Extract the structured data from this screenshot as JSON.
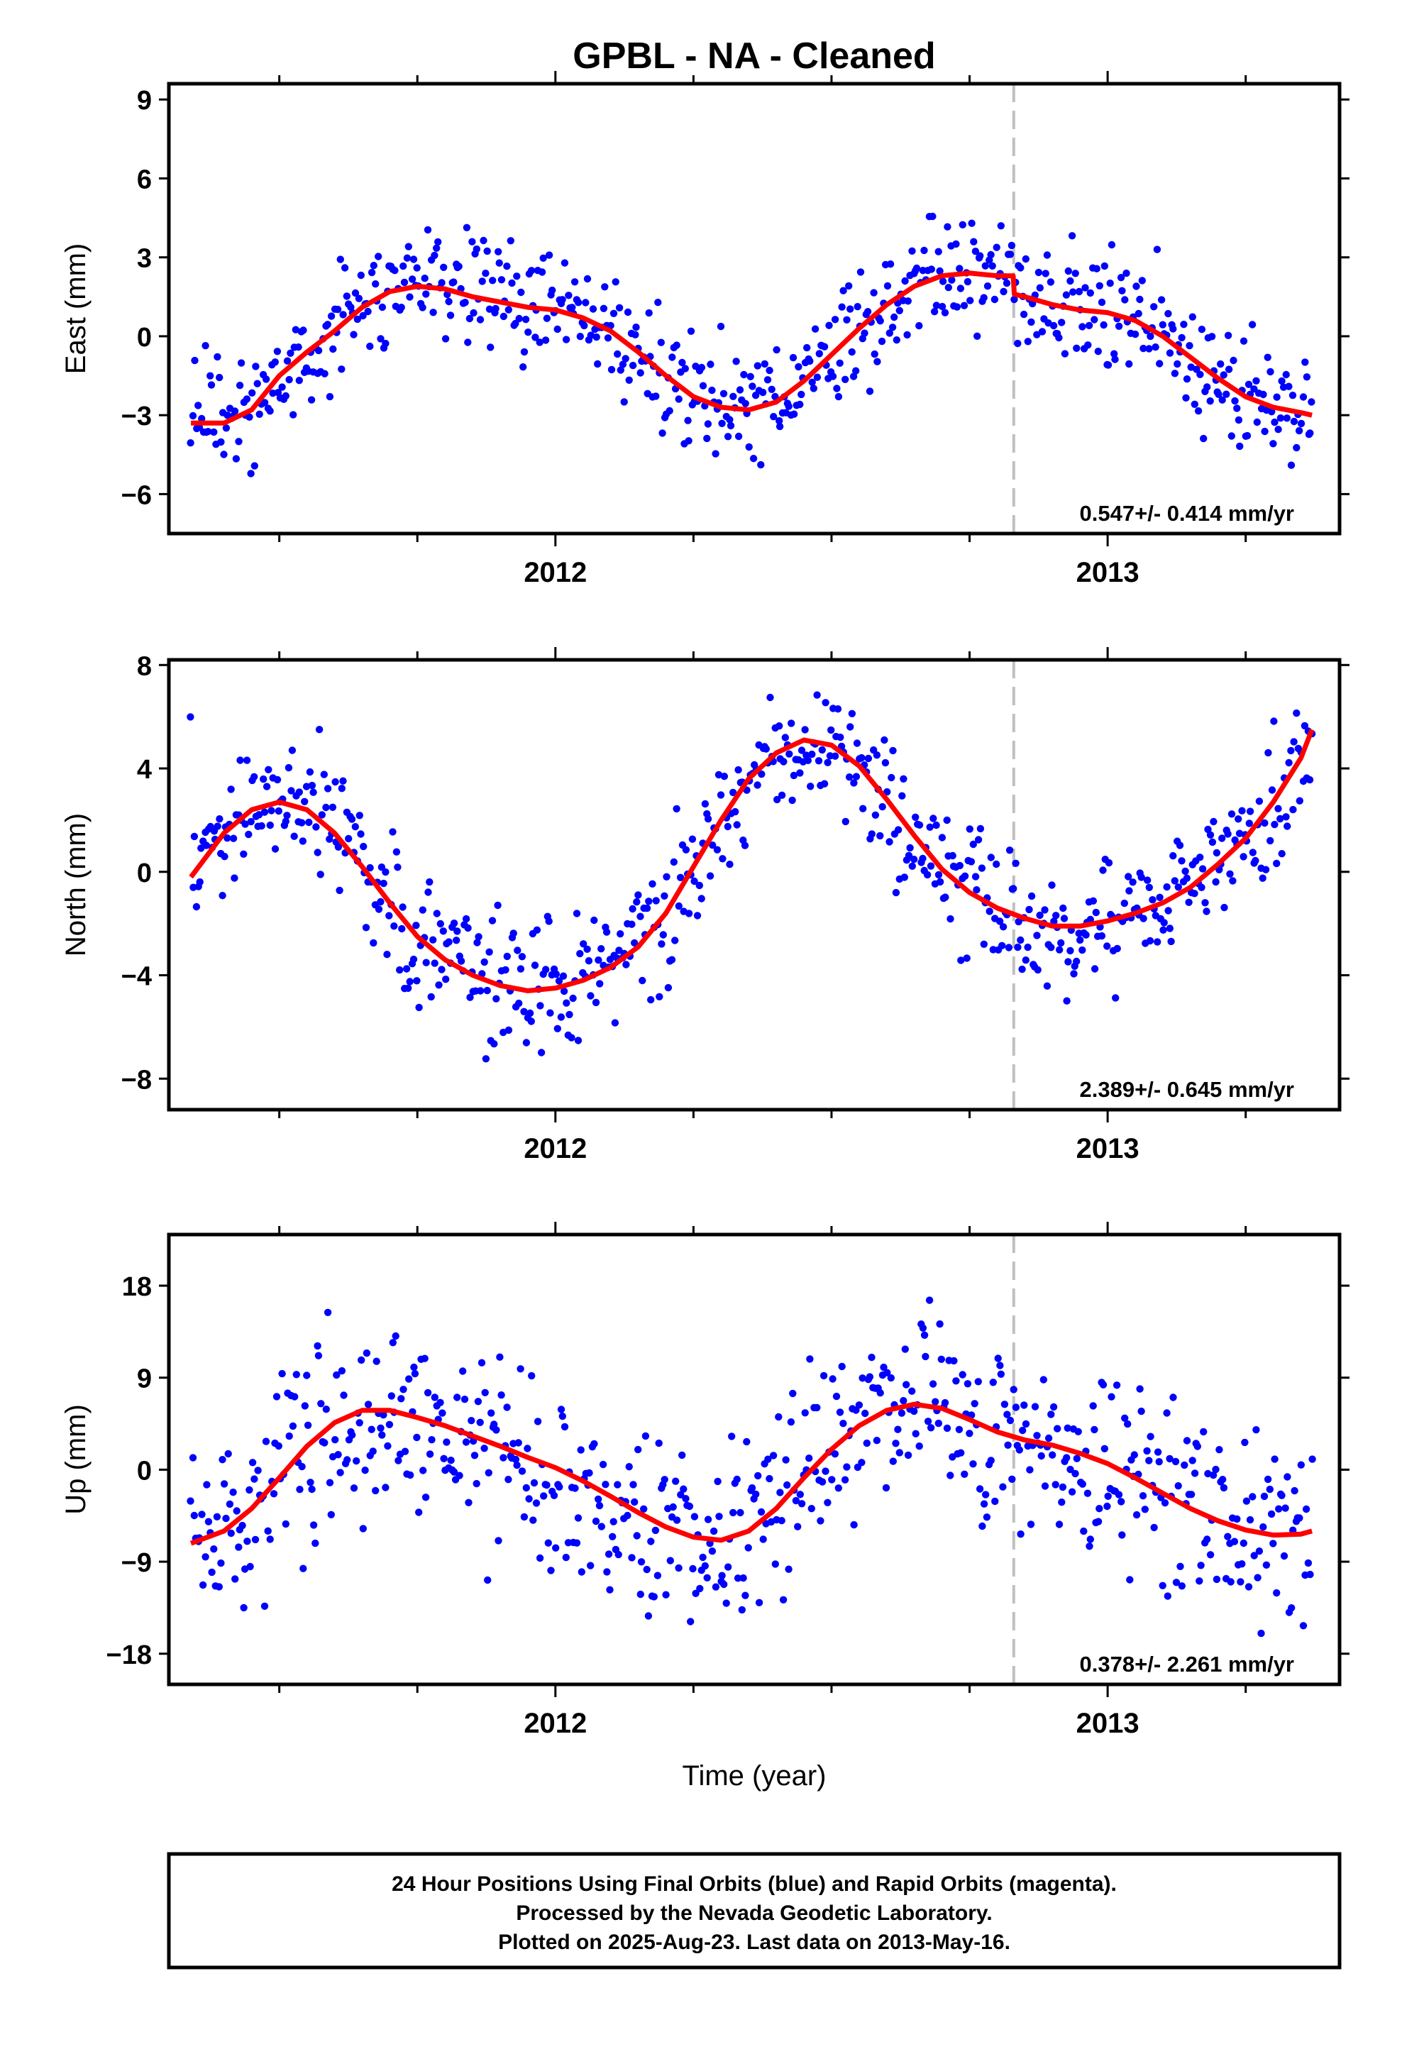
{
  "title": "GPBL  - NA - Cleaned",
  "xaxis_label": "Time (year)",
  "footer": {
    "line1": "24 Hour Positions Using Final Orbits (blue) and Rapid Orbits (magenta).",
    "line2": "Processed by the Nevada Geodetic Laboratory.",
    "line3": "Plotted on 2025-Aug-23. Last data on 2013-May-16."
  },
  "colors": {
    "points": "#0000ff",
    "fit": "#ff0000",
    "break_line": "#c0c0c0",
    "frame": "#000000"
  },
  "chart_data": [
    {
      "type": "scatter",
      "ylabel": "East (mm)",
      "rate_label": "0.547+/- 0.414 mm/yr",
      "xlim": [
        2011.3,
        2013.42
      ],
      "ylim": [
        -7.5,
        9.6
      ],
      "yticks": [
        -6,
        -3,
        0,
        3,
        6,
        9
      ],
      "xticks_major": [
        2012,
        2013
      ],
      "xtick_labels": [
        "2012",
        "2013"
      ],
      "break_year": 2012.83,
      "fit_series": [
        [
          2011.34,
          -3.3
        ],
        [
          2011.4,
          -3.3
        ],
        [
          2011.45,
          -2.8
        ],
        [
          2011.5,
          -1.5
        ],
        [
          2011.55,
          -0.6
        ],
        [
          2011.6,
          0.2
        ],
        [
          2011.65,
          1.1
        ],
        [
          2011.7,
          1.7
        ],
        [
          2011.75,
          1.9
        ],
        [
          2011.8,
          1.8
        ],
        [
          2011.85,
          1.5
        ],
        [
          2011.9,
          1.3
        ],
        [
          2011.95,
          1.1
        ],
        [
          2012.0,
          1.0
        ],
        [
          2012.05,
          0.7
        ],
        [
          2012.1,
          0.2
        ],
        [
          2012.15,
          -0.6
        ],
        [
          2012.2,
          -1.5
        ],
        [
          2012.25,
          -2.3
        ],
        [
          2012.3,
          -2.7
        ],
        [
          2012.35,
          -2.8
        ],
        [
          2012.4,
          -2.5
        ],
        [
          2012.45,
          -1.7
        ],
        [
          2012.5,
          -0.7
        ],
        [
          2012.55,
          0.3
        ],
        [
          2012.6,
          1.2
        ],
        [
          2012.65,
          1.9
        ],
        [
          2012.7,
          2.3
        ],
        [
          2012.75,
          2.4
        ],
        [
          2012.8,
          2.3
        ],
        [
          2012.829,
          2.3
        ],
        [
          2012.831,
          1.6
        ],
        [
          2012.85,
          1.5
        ],
        [
          2012.9,
          1.2
        ],
        [
          2012.95,
          1.0
        ],
        [
          2013.0,
          0.9
        ],
        [
          2013.05,
          0.6
        ],
        [
          2013.1,
          0.0
        ],
        [
          2013.15,
          -0.8
        ],
        [
          2013.2,
          -1.6
        ],
        [
          2013.25,
          -2.3
        ],
        [
          2013.3,
          -2.7
        ],
        [
          2013.35,
          -2.9
        ],
        [
          2013.37,
          -3.0
        ]
      ]
    },
    {
      "type": "scatter",
      "ylabel": "North (mm)",
      "rate_label": "2.389+/- 0.645 mm/yr",
      "xlim": [
        2011.3,
        2013.42
      ],
      "ylim": [
        -9.2,
        8.2
      ],
      "yticks": [
        -8,
        -4,
        0,
        4,
        8
      ],
      "xticks_major": [
        2012,
        2013
      ],
      "xtick_labels": [
        "2012",
        "2013"
      ],
      "break_year": 2012.83,
      "fit_series": [
        [
          2011.34,
          -0.2
        ],
        [
          2011.4,
          1.5
        ],
        [
          2011.45,
          2.4
        ],
        [
          2011.5,
          2.7
        ],
        [
          2011.55,
          2.4
        ],
        [
          2011.6,
          1.5
        ],
        [
          2011.65,
          0.2
        ],
        [
          2011.7,
          -1.2
        ],
        [
          2011.75,
          -2.5
        ],
        [
          2011.8,
          -3.4
        ],
        [
          2011.85,
          -4.0
        ],
        [
          2011.9,
          -4.4
        ],
        [
          2011.95,
          -4.6
        ],
        [
          2012.0,
          -4.5
        ],
        [
          2012.05,
          -4.2
        ],
        [
          2012.1,
          -3.7
        ],
        [
          2012.15,
          -2.9
        ],
        [
          2012.2,
          -1.6
        ],
        [
          2012.25,
          0.2
        ],
        [
          2012.3,
          2.0
        ],
        [
          2012.35,
          3.6
        ],
        [
          2012.4,
          4.6
        ],
        [
          2012.45,
          5.1
        ],
        [
          2012.5,
          4.9
        ],
        [
          2012.55,
          4.1
        ],
        [
          2012.6,
          2.8
        ],
        [
          2012.65,
          1.4
        ],
        [
          2012.7,
          0.1
        ],
        [
          2012.75,
          -0.8
        ],
        [
          2012.8,
          -1.4
        ],
        [
          2012.85,
          -1.8
        ],
        [
          2012.9,
          -2.1
        ],
        [
          2012.95,
          -2.1
        ],
        [
          2013.0,
          -1.9
        ],
        [
          2013.05,
          -1.6
        ],
        [
          2013.1,
          -1.2
        ],
        [
          2013.15,
          -0.6
        ],
        [
          2013.2,
          0.3
        ],
        [
          2013.25,
          1.3
        ],
        [
          2013.3,
          2.7
        ],
        [
          2013.35,
          4.4
        ],
        [
          2013.37,
          5.5
        ]
      ]
    },
    {
      "type": "scatter",
      "ylabel": "Up (mm)",
      "rate_label": "0.378+/- 2.261 mm/yr",
      "xlim": [
        2011.3,
        2013.42
      ],
      "ylim": [
        -21,
        23
      ],
      "yticks": [
        -18,
        -9,
        0,
        9,
        18
      ],
      "xtick_labels": [
        "2012",
        "2013"
      ],
      "xticks_major": [
        2012,
        2013
      ],
      "break_year": 2012.83,
      "fit_series": [
        [
          2011.34,
          -7.2
        ],
        [
          2011.4,
          -6.0
        ],
        [
          2011.45,
          -3.8
        ],
        [
          2011.5,
          -0.8
        ],
        [
          2011.55,
          2.3
        ],
        [
          2011.6,
          4.6
        ],
        [
          2011.65,
          5.8
        ],
        [
          2011.7,
          5.8
        ],
        [
          2011.75,
          5.1
        ],
        [
          2011.8,
          4.3
        ],
        [
          2011.85,
          3.3
        ],
        [
          2011.9,
          2.3
        ],
        [
          2011.95,
          1.2
        ],
        [
          2012.0,
          0.2
        ],
        [
          2012.05,
          -1.1
        ],
        [
          2012.1,
          -2.6
        ],
        [
          2012.15,
          -4.2
        ],
        [
          2012.2,
          -5.6
        ],
        [
          2012.25,
          -6.6
        ],
        [
          2012.3,
          -6.9
        ],
        [
          2012.35,
          -6.0
        ],
        [
          2012.4,
          -3.8
        ],
        [
          2012.45,
          -0.8
        ],
        [
          2012.5,
          2.0
        ],
        [
          2012.55,
          4.3
        ],
        [
          2012.6,
          5.8
        ],
        [
          2012.65,
          6.4
        ],
        [
          2012.7,
          6.0
        ],
        [
          2012.75,
          4.9
        ],
        [
          2012.8,
          3.7
        ],
        [
          2012.85,
          2.9
        ],
        [
          2012.9,
          2.4
        ],
        [
          2012.95,
          1.6
        ],
        [
          2013.0,
          0.6
        ],
        [
          2013.05,
          -0.8
        ],
        [
          2013.1,
          -2.3
        ],
        [
          2013.15,
          -3.8
        ],
        [
          2013.2,
          -5.0
        ],
        [
          2013.25,
          -5.9
        ],
        [
          2013.3,
          -6.4
        ],
        [
          2013.35,
          -6.3
        ],
        [
          2013.37,
          -6.0
        ]
      ]
    }
  ]
}
